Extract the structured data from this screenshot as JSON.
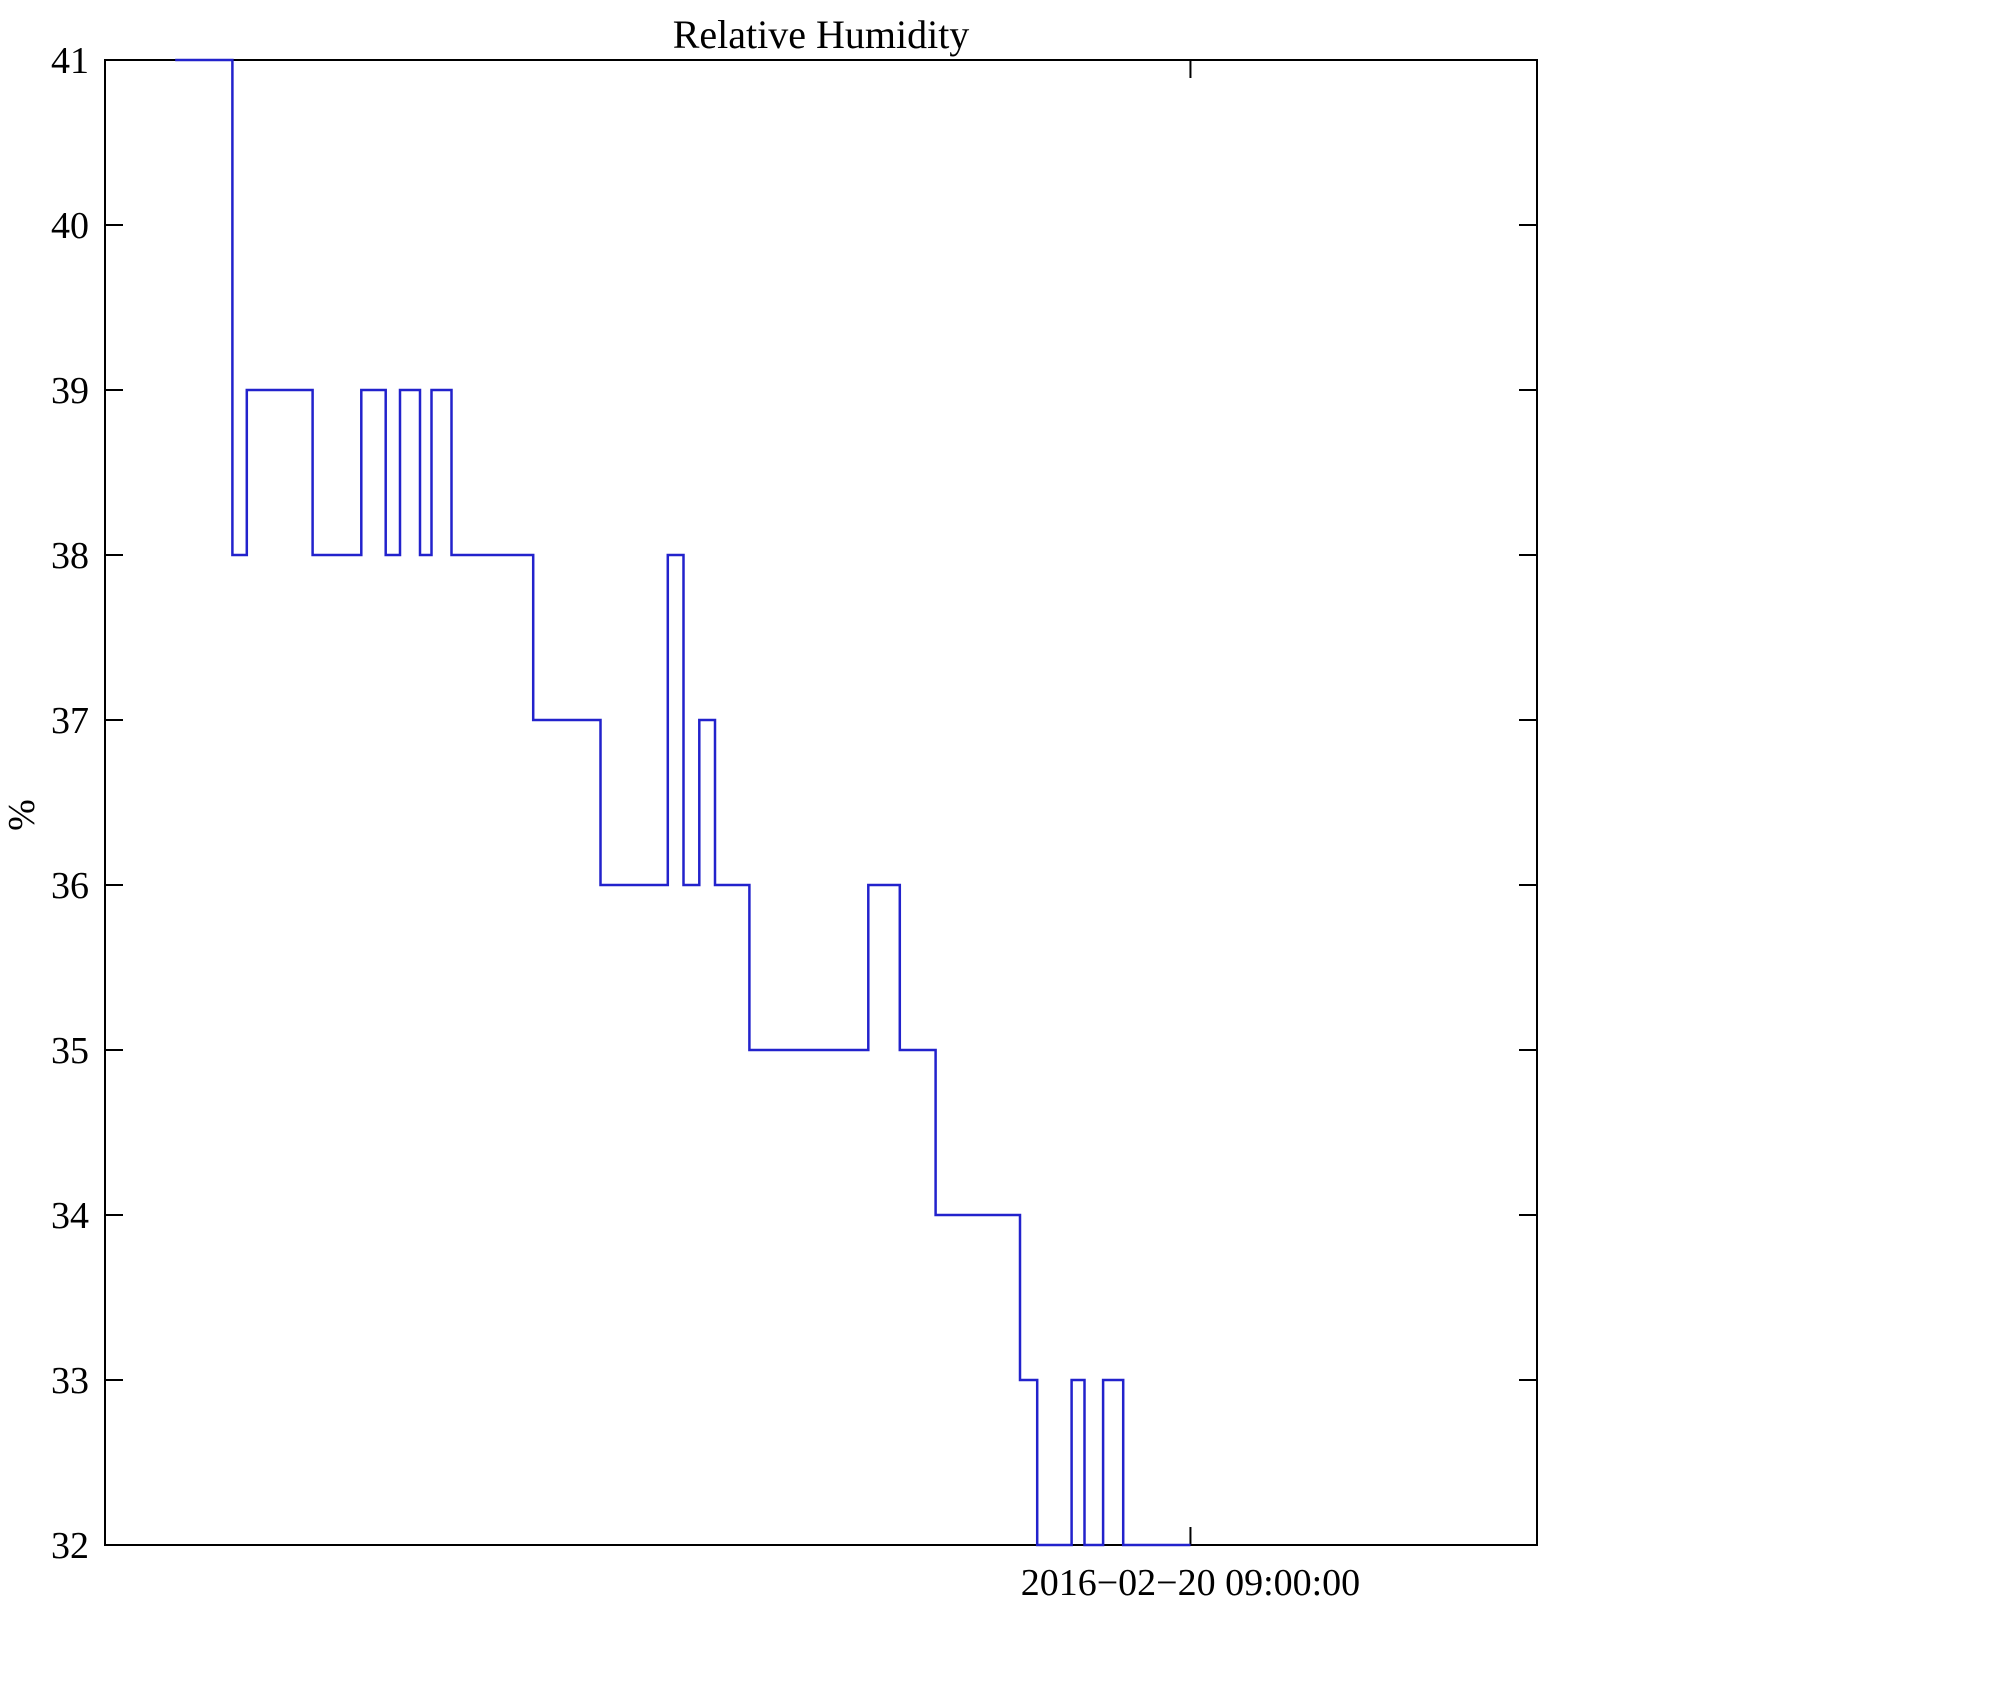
{
  "figure": {
    "background": "#ffffff"
  },
  "chart_data": {
    "type": "line",
    "style": "step",
    "title": "Relative Humidity",
    "ylabel": "%",
    "xlabel": "",
    "ylim": [
      32,
      41
    ],
    "yticks": [
      32,
      33,
      34,
      35,
      36,
      37,
      38,
      39,
      40,
      41
    ],
    "xticks": [
      {
        "label": "2016−02−20 09:00:00",
        "position": 0.758
      }
    ],
    "grid": false,
    "legend": "none",
    "axis_color": "#000000",
    "line_color": "#2222cc",
    "series": [
      {
        "name": "Relative Humidity",
        "step_points": [
          [
            0.049,
            41
          ],
          [
            0.089,
            41
          ],
          [
            0.089,
            38
          ],
          [
            0.099,
            38
          ],
          [
            0.099,
            39
          ],
          [
            0.145,
            39
          ],
          [
            0.145,
            38
          ],
          [
            0.179,
            38
          ],
          [
            0.179,
            39
          ],
          [
            0.196,
            39
          ],
          [
            0.196,
            38
          ],
          [
            0.206,
            38
          ],
          [
            0.206,
            39
          ],
          [
            0.22,
            39
          ],
          [
            0.22,
            38
          ],
          [
            0.228,
            38
          ],
          [
            0.228,
            39
          ],
          [
            0.242,
            39
          ],
          [
            0.242,
            38
          ],
          [
            0.299,
            38
          ],
          [
            0.299,
            37
          ],
          [
            0.346,
            37
          ],
          [
            0.346,
            36
          ],
          [
            0.393,
            36
          ],
          [
            0.393,
            38
          ],
          [
            0.404,
            38
          ],
          [
            0.404,
            36
          ],
          [
            0.415,
            36
          ],
          [
            0.415,
            37
          ],
          [
            0.426,
            37
          ],
          [
            0.426,
            36
          ],
          [
            0.45,
            36
          ],
          [
            0.45,
            35
          ],
          [
            0.533,
            35
          ],
          [
            0.533,
            36
          ],
          [
            0.555,
            36
          ],
          [
            0.555,
            35
          ],
          [
            0.58,
            35
          ],
          [
            0.58,
            34
          ],
          [
            0.639,
            34
          ],
          [
            0.639,
            33
          ],
          [
            0.651,
            33
          ],
          [
            0.651,
            32
          ],
          [
            0.675,
            32
          ],
          [
            0.675,
            33
          ],
          [
            0.684,
            33
          ],
          [
            0.684,
            32
          ],
          [
            0.697,
            32
          ],
          [
            0.697,
            33
          ],
          [
            0.711,
            33
          ],
          [
            0.711,
            32
          ],
          [
            0.758,
            32
          ]
        ]
      }
    ]
  }
}
